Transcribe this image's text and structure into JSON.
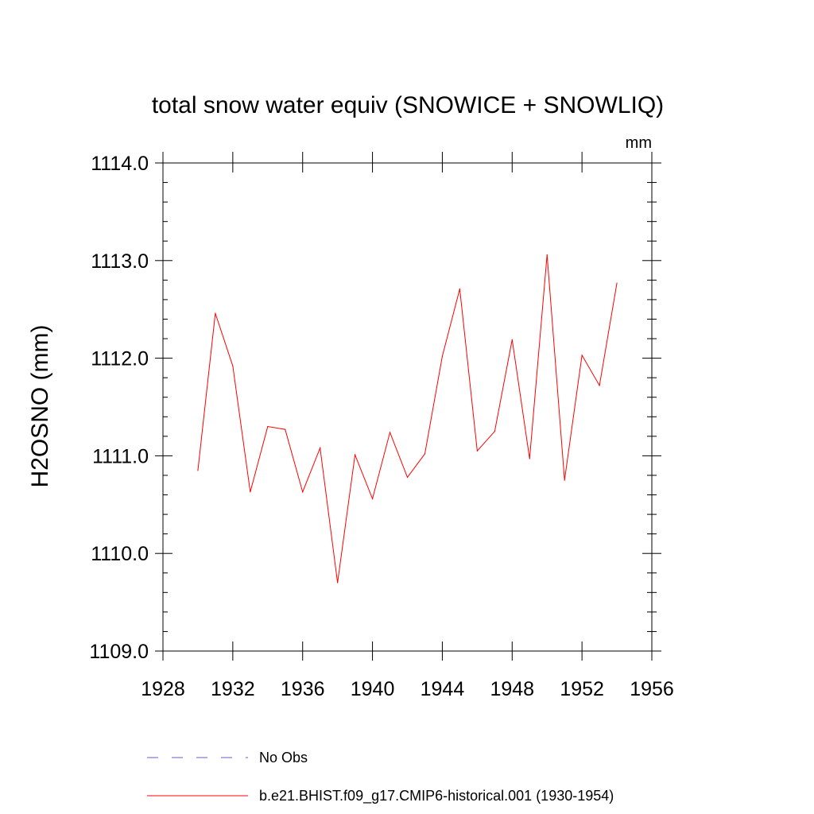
{
  "chart_data": {
    "type": "line",
    "title": "total snow water equiv (SNOWICE + SNOWLIQ)",
    "units_label": "mm",
    "ylabel": "H2OSNO  (mm)",
    "xlabel": "",
    "xlim": [
      1928,
      1956
    ],
    "ylim": [
      1109.0,
      1114.0
    ],
    "x_ticks": [
      1928,
      1932,
      1936,
      1940,
      1944,
      1948,
      1952,
      1956
    ],
    "x_tick_labels": [
      "1928",
      "1932",
      "1936",
      "1940",
      "1944",
      "1948",
      "1952",
      "1956"
    ],
    "y_ticks": [
      1109.0,
      1110.0,
      1111.0,
      1112.0,
      1113.0,
      1114.0
    ],
    "y_tick_labels": [
      "1109.0",
      "1110.0",
      "1111.0",
      "1112.0",
      "1113.0",
      "1114.0"
    ],
    "x": [
      1930,
      1931,
      1932,
      1933,
      1934,
      1935,
      1936,
      1937,
      1938,
      1939,
      1940,
      1941,
      1942,
      1943,
      1944,
      1945,
      1946,
      1947,
      1948,
      1949,
      1950,
      1951,
      1952,
      1953,
      1954
    ],
    "series": [
      {
        "name": "b.e21.BHIST.f09_g17.CMIP6-historical.001 (1930-1954)",
        "color": "#ff0000",
        "dash": "solid",
        "values": [
          1110.85,
          1112.46,
          1111.92,
          1110.63,
          1111.3,
          1111.27,
          1110.63,
          1111.08,
          1109.7,
          1111.01,
          1110.56,
          1111.24,
          1110.78,
          1111.02,
          1112.02,
          1112.71,
          1111.05,
          1111.25,
          1112.19,
          1110.97,
          1113.06,
          1110.75,
          1112.03,
          1111.72,
          1112.77
        ]
      }
    ],
    "legend": {
      "placement": "bottom",
      "entries": [
        {
          "label": "No Obs",
          "color": "#6a5acd",
          "dash": "dashed"
        },
        {
          "label": "b.e21.BHIST.f09_g17.CMIP6-historical.001 (1930-1954)",
          "color": "#ff0000",
          "dash": "solid"
        }
      ]
    }
  }
}
